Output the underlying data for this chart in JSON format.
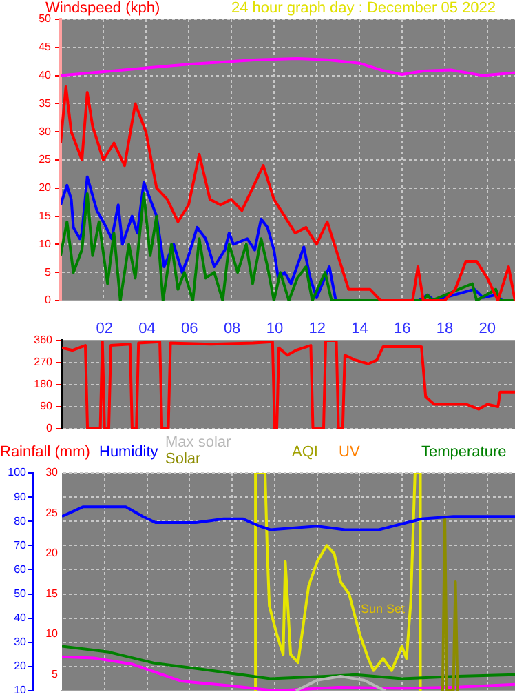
{
  "chart_data": [
    {
      "type": "line",
      "title": "24 hour graph day : December 05 2022",
      "ylabel": "Windspeed (kph)",
      "xlim": [
        0,
        21.3
      ],
      "xticks": [
        {
          "value": 2,
          "label": null
        },
        {
          "value": 4,
          "label": null
        },
        {
          "value": 6,
          "label": null
        },
        {
          "value": 8,
          "label": null
        },
        {
          "value": 10,
          "label": null
        },
        {
          "value": 12,
          "label": null
        },
        {
          "value": 14,
          "label": null
        },
        {
          "value": 16,
          "label": null
        },
        {
          "value": 18,
          "label": null
        },
        {
          "value": 20,
          "label": null
        }
      ],
      "ylim": [
        0,
        50
      ],
      "yticks": [
        0,
        5,
        10,
        15,
        20,
        25,
        30,
        35,
        40,
        45,
        50
      ],
      "grid": true,
      "tick_labels": "y",
      "series": [
        {
          "color": "#ff0000",
          "x": [
            0,
            0.25,
            0.5,
            1,
            1.25,
            1.5,
            2,
            2.5,
            3,
            3.5,
            4,
            4.5,
            5,
            5.5,
            6,
            6.5,
            7,
            7.5,
            8,
            8.5,
            9,
            9.5,
            10,
            10.5,
            11,
            11.5,
            12,
            12.5,
            13,
            13.5,
            14,
            14.5,
            15,
            16,
            16.5,
            16.75,
            17,
            18,
            18.5,
            19,
            19.5,
            20,
            20.5,
            21,
            21.3
          ],
          "values": [
            28,
            38,
            30,
            25,
            37,
            31,
            25,
            28,
            24,
            35,
            30,
            20,
            18,
            14,
            17,
            26,
            18,
            17,
            18,
            16,
            20,
            24,
            18,
            15,
            12,
            13,
            10,
            14,
            8,
            2,
            2,
            2,
            0,
            0,
            0,
            6,
            0,
            0,
            2,
            7,
            7,
            4,
            0,
            6,
            0
          ]
        },
        {
          "color": "#008000",
          "x": [
            0,
            0.3,
            0.6,
            1,
            1.25,
            1.5,
            1.8,
            2.2,
            2.5,
            2.8,
            3.2,
            3.5,
            3.9,
            4.2,
            4.5,
            4.8,
            5.2,
            5.5,
            5.8,
            6.2,
            6.5,
            6.8,
            7.2,
            7.6,
            7.9,
            8.3,
            8.7,
            9,
            9.4,
            9.7,
            10,
            10.3,
            10.7,
            11.1,
            11.5,
            11.8,
            12.4,
            12.7,
            17,
            17.2,
            17.4,
            19.3,
            19.5,
            20.4,
            20.6,
            21.3
          ],
          "values": [
            8,
            14,
            5,
            9,
            19,
            8,
            14,
            3,
            12,
            0,
            10,
            4,
            19,
            8,
            15,
            0,
            10,
            2,
            5,
            0,
            11,
            4,
            5,
            0,
            10,
            5,
            10,
            3,
            11,
            6,
            0,
            5,
            0,
            4,
            6,
            0,
            5,
            0,
            0,
            1,
            0,
            3,
            0,
            2,
            0,
            0
          ]
        },
        {
          "color": "#0000ff",
          "x": [
            0,
            0.3,
            0.5,
            0.6,
            0.9,
            1.0,
            1.25,
            1.7,
            2,
            2.4,
            2.7,
            2.9,
            3.35,
            3.6,
            3.9,
            4.2,
            4.5,
            4.85,
            5.3,
            5.7,
            6,
            6.4,
            6.8,
            7.2,
            7.7,
            7.9,
            8.1,
            8.75,
            9.1,
            9.4,
            9.7,
            10,
            10.2,
            10.5,
            10.8,
            11.4,
            11.7,
            12,
            12.6,
            12.9,
            13.5,
            16.8,
            17.2,
            17.5,
            19.4,
            19.8,
            20.4,
            20.7,
            21.3
          ],
          "values": [
            17,
            20.5,
            18,
            13,
            11,
            12,
            22,
            16,
            14,
            11,
            17,
            10,
            15,
            12,
            21,
            18,
            15,
            6,
            10,
            5,
            8,
            13,
            11,
            6,
            9,
            12,
            10,
            11,
            9,
            14.5,
            13,
            9,
            4,
            5,
            3,
            9.5,
            4,
            0.5,
            6,
            0,
            0,
            0,
            1,
            0,
            2,
            0.5,
            1,
            0,
            0
          ]
        },
        {
          "color": "#ff00ff",
          "x": [
            0,
            3.6,
            6,
            9.2,
            11.1,
            12.5,
            14,
            15,
            16,
            17,
            18.3,
            19.8,
            21.3
          ],
          "values": [
            40,
            41.2,
            42,
            42.8,
            43,
            42.8,
            42.2,
            41,
            40.2,
            40.8,
            41,
            40,
            40.5
          ]
        }
      ]
    },
    {
      "type": "line",
      "xlim": [
        0,
        21.3
      ],
      "xticks": [
        {
          "value": 2,
          "label": "02"
        },
        {
          "value": 4,
          "label": "04"
        },
        {
          "value": 6,
          "label": "06"
        },
        {
          "value": 8,
          "label": "08"
        },
        {
          "value": 10,
          "label": "10"
        },
        {
          "value": 12,
          "label": "12"
        },
        {
          "value": 14,
          "label": "14"
        },
        {
          "value": 16,
          "label": "16"
        },
        {
          "value": 18,
          "label": "18"
        },
        {
          "value": 20,
          "label": "20"
        }
      ],
      "ylim": [
        0,
        360
      ],
      "yticks": [
        0,
        90,
        180,
        270,
        360
      ],
      "grid": "y",
      "series": [
        {
          "color": "#ff0000",
          "x": [
            0,
            0.5,
            1.1,
            1.2,
            1.8,
            1.9,
            2.0,
            2.2,
            2.3,
            3.2,
            3.3,
            3.5,
            3.6,
            4.6,
            4.7,
            5.0,
            5.1,
            7,
            9,
            9.9,
            10.0,
            10.1,
            10.2,
            10.6,
            11,
            11.7,
            11.8,
            12.3,
            12.4,
            12.9,
            13.0,
            13.2,
            13.3,
            13.8,
            14.4,
            14.8,
            15.1,
            16.9,
            17.1,
            17.5,
            19,
            19.6,
            20,
            20.5,
            20.6,
            21.3
          ],
          "values": [
            330,
            320,
            340,
            0,
            0,
            360,
            0,
            0,
            340,
            345,
            0,
            0,
            350,
            355,
            0,
            0,
            350,
            345,
            350,
            355,
            0,
            0,
            330,
            300,
            320,
            340,
            0,
            0,
            360,
            360,
            0,
            0,
            300,
            280,
            265,
            280,
            335,
            335,
            130,
            100,
            100,
            80,
            100,
            90,
            150,
            150
          ]
        }
      ]
    },
    {
      "type": "line",
      "y2label": "Rainfall (mm)",
      "annotations": [
        "AQI",
        "UV",
        "Sun Set"
      ],
      "xlim": [
        0,
        21.3
      ],
      "xticks": [
        {
          "value": 2,
          "label": null
        },
        {
          "value": 4,
          "label": null
        },
        {
          "value": 6,
          "label": null
        },
        {
          "value": 8,
          "label": null
        },
        {
          "value": 10,
          "label": null
        },
        {
          "value": 12,
          "label": null
        },
        {
          "value": 14,
          "label": null
        },
        {
          "value": 16,
          "label": null
        },
        {
          "value": 18,
          "label": null
        },
        {
          "value": 20,
          "label": null
        }
      ],
      "ylim": [
        10,
        100
      ],
      "yticks": [
        10,
        20,
        30,
        40,
        50,
        60,
        70,
        80,
        90,
        100
      ],
      "y2lim": [
        3,
        30
      ],
      "y2ticks": [
        5,
        10,
        15,
        20,
        25,
        30
      ],
      "grid": true,
      "tick_labels": "y",
      "series": [
        {
          "name": "Humidity",
          "color": "#0000ff",
          "x": [
            0,
            1,
            3,
            3.8,
            4.4,
            6.3,
            7.6,
            8.5,
            9.3,
            9.8,
            12,
            13.3,
            14.9,
            16,
            16.9,
            18.4,
            21.3
          ],
          "values": [
            82,
            86,
            86,
            82,
            79.5,
            79.5,
            81,
            81,
            78,
            76.5,
            78,
            76.5,
            76.5,
            79,
            81,
            82,
            82
          ]
        },
        {
          "name": "Max solar",
          "color": "#b8b8b8",
          "axis": "y2",
          "x": [
            11,
            12,
            13.1,
            14.2,
            15.2
          ],
          "values": [
            3,
            4.3,
            4.8,
            4.3,
            3
          ]
        },
        {
          "name": "Solar",
          "color": "#8c8c00",
          "axis": "y2",
          "x": [
            17.9,
            18,
            18.1,
            18.4,
            18.5,
            18.6
          ],
          "values": [
            3,
            24.5,
            3,
            3,
            16.5,
            3
          ]
        },
        {
          "name": "Temperature",
          "color": "#008000",
          "x": [
            0,
            2.2,
            4.3,
            6.5,
            9.8,
            12.4,
            13.8,
            16,
            18.6,
            21.3
          ],
          "values": [
            28.4,
            26,
            21.5,
            19,
            15,
            16,
            16.6,
            15,
            16,
            16.6
          ]
        },
        {
          "color": "#ff00ff",
          "x": [
            0,
            1.5,
            3.3,
            5.6,
            8,
            10,
            13,
            16,
            18.6,
            21.3
          ],
          "values": [
            24,
            23.5,
            21,
            14,
            12,
            10,
            11.4,
            11,
            11.5,
            12.6
          ]
        },
        {
          "color": "#e6e600",
          "axis": "y2",
          "x": [
            9.1,
            9.1,
            9.55,
            9.65,
            9.75,
            10.1,
            10.4,
            10.5,
            10.75,
            11.1,
            11.6,
            12,
            12.45,
            12.8,
            13.1,
            13.5,
            14,
            14.4,
            14.65,
            15.1,
            15.5,
            15.98,
            16.2,
            16.4,
            16.5,
            16.6,
            16.85,
            16.85
          ],
          "values": [
            3,
            30,
            30,
            20.5,
            13.5,
            10,
            7.5,
            19,
            7.5,
            6.5,
            16,
            19,
            21,
            20,
            16.5,
            15,
            10,
            7,
            5.5,
            7,
            5.5,
            8.5,
            7,
            14,
            22,
            30,
            30,
            3
          ]
        }
      ]
    }
  ]
}
